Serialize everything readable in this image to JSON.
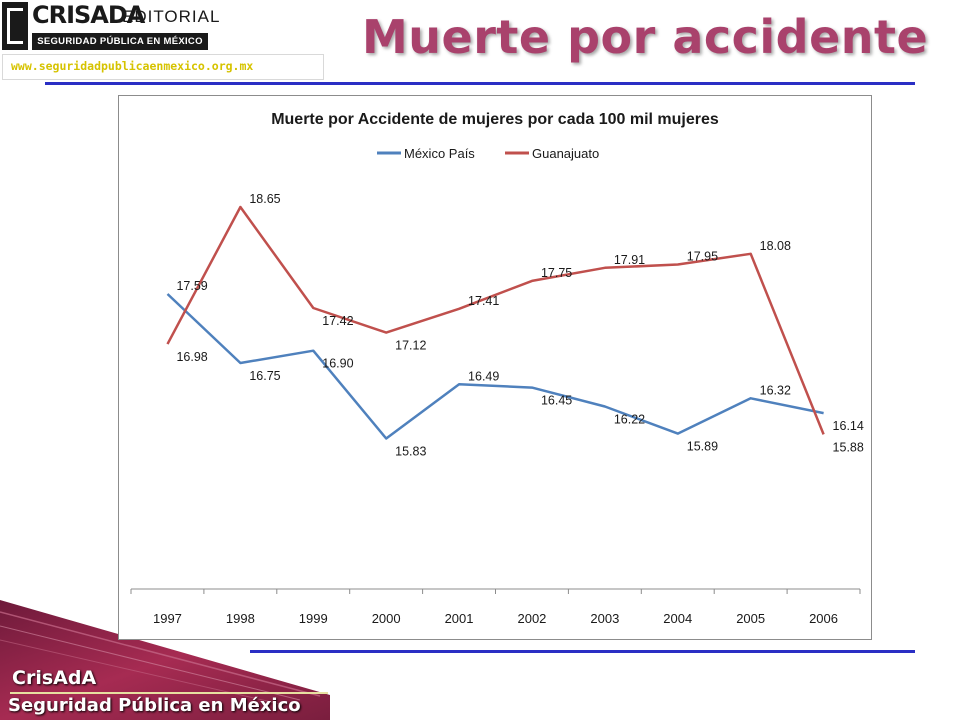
{
  "header": {
    "logo_brand": "CRISADA",
    "logo_editorial": "EDITORIAL",
    "logo_strip": "SEGURIDAD PÚBLICA EN MÉXICO",
    "url": "www.seguridadpublicaenmexico.org.mx",
    "title": "Muerte por accidente"
  },
  "footer": {
    "brand": "CrisAdA",
    "subtitle": "Seguridad Pública en México"
  },
  "colors": {
    "title": "#a9426c",
    "rule": "#2a2fc4",
    "series_mexico": "#4f81bd",
    "series_guanajuato": "#c0504d"
  },
  "chart_data": {
    "type": "line",
    "title": "Muerte por Accidente de mujeres por cada 100 mil mujeres",
    "categories": [
      "1997",
      "1998",
      "1999",
      "2000",
      "2001",
      "2002",
      "2003",
      "2004",
      "2005",
      "2006"
    ],
    "series": [
      {
        "name": "México País",
        "color": "#4f81bd",
        "values": [
          17.59,
          16.75,
          16.9,
          15.83,
          16.49,
          16.45,
          16.22,
          15.89,
          16.32,
          16.14
        ],
        "labels": [
          "17.59",
          "16.75",
          "16.90",
          "15.83",
          "16.49",
          "16.45",
          "16.22",
          "15.89",
          "16.32",
          "16.14"
        ]
      },
      {
        "name": "Guanajuato",
        "color": "#c0504d",
        "values": [
          16.98,
          18.65,
          17.42,
          17.12,
          17.41,
          17.75,
          17.91,
          17.95,
          18.08,
          15.88
        ],
        "labels": [
          "16.98",
          "18.65",
          "17.42",
          "17.12",
          "17.41",
          "17.75",
          "17.91",
          "17.95",
          "18.08",
          "15.88"
        ]
      }
    ],
    "legend_position": "top",
    "grid": false,
    "ylim": [
      15.8,
      18.65
    ]
  }
}
